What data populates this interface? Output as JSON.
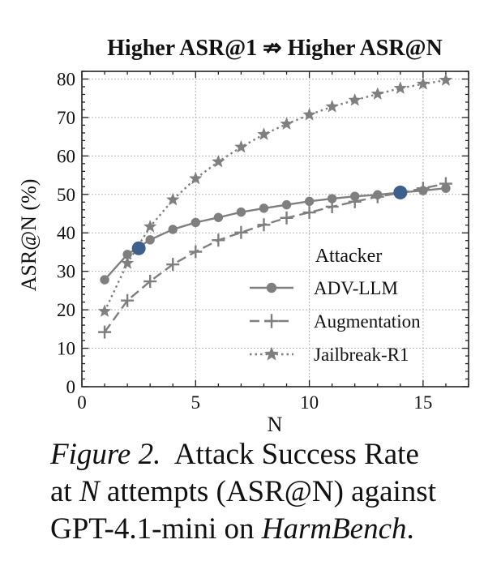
{
  "chart_data": {
    "type": "line",
    "title": "Higher ASR@1 ⇏ Higher ASR@N",
    "xlabel": "N",
    "ylabel": "ASR@N (%)",
    "xlim": [
      0,
      17
    ],
    "ylim": [
      0,
      82
    ],
    "xticks": [
      0,
      5,
      10,
      15
    ],
    "yticks": [
      0,
      10,
      20,
      30,
      40,
      50,
      60,
      70,
      80
    ],
    "grid": true,
    "legend": {
      "title": "Attacker",
      "placement": "lower-right"
    },
    "x": [
      1,
      2,
      3,
      4,
      5,
      6,
      7,
      8,
      9,
      10,
      11,
      12,
      13,
      14,
      15,
      16
    ],
    "series": [
      {
        "name": "ADV-LLM",
        "marker": "circle",
        "linestyle": "solid",
        "color": "#7f7f7f",
        "values": [
          27.8,
          34.4,
          38.2,
          40.9,
          42.7,
          44.0,
          45.4,
          46.4,
          47.3,
          48.2,
          48.9,
          49.5,
          49.9,
          50.5,
          51.0,
          51.6
        ]
      },
      {
        "name": "Augmentation",
        "marker": "plus",
        "linestyle": "dashed",
        "color": "#7f7f7f",
        "values": [
          14.2,
          22.4,
          27.4,
          31.8,
          35.1,
          38.1,
          40.1,
          42.1,
          43.9,
          45.3,
          46.8,
          48.1,
          49.4,
          50.4,
          51.6,
          52.8
        ]
      },
      {
        "name": "Jailbreak-R1",
        "marker": "star",
        "linestyle": "dotted",
        "color": "#7f7f7f",
        "values": [
          19.6,
          32.1,
          41.6,
          48.6,
          54.1,
          58.5,
          62.3,
          65.6,
          68.3,
          70.7,
          72.8,
          74.5,
          76.1,
          77.6,
          78.7,
          79.7
        ]
      }
    ],
    "highlight_points": [
      {
        "x": 2.5,
        "y": 36.0,
        "color": "#3d5f8c"
      },
      {
        "x": 14.0,
        "y": 50.5,
        "color": "#3d5f8c"
      }
    ]
  },
  "caption": {
    "figure_label": "Figure 2.",
    "line1_text": "Attack Success Rate",
    "line2_prefix": "at",
    "line2_var": "N",
    "line2_suffix": "attempts (ASR@N) against",
    "line3_prefix": "GPT-4.1-mini on",
    "line3_em": "HarmBench",
    "line3_suffix": "."
  }
}
